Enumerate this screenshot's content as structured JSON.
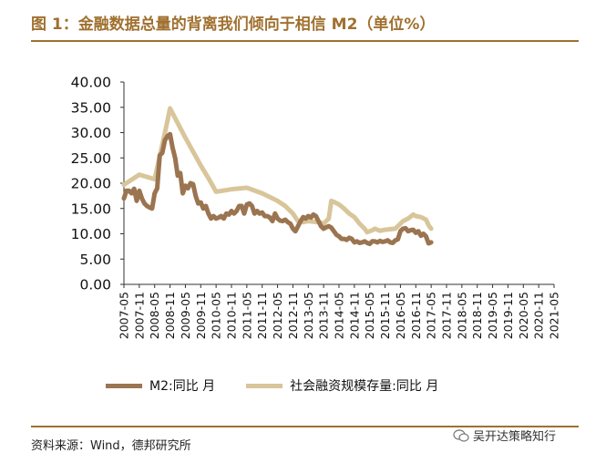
{
  "header": {
    "title": "图 1：金融数据总量的背离我们倾向于相信 M2（单位%）"
  },
  "footer": {
    "source": "资料来源：Wind，德邦研究所",
    "watermark": "吴开达策略知行"
  },
  "colors": {
    "accent": "#a0702f",
    "m2": "#9b7450",
    "tsf": "#d8c59a"
  },
  "chart_data": {
    "type": "line",
    "title": "金融数据总量的背离我们倾向于相信 M2（单位%）",
    "xlabel": "",
    "ylabel": "",
    "ylim": [
      0,
      40
    ],
    "yticks": [
      "0.00",
      "5.00",
      "10.00",
      "15.00",
      "20.00",
      "25.00",
      "30.00",
      "35.00",
      "40.00"
    ],
    "xticks": [
      "2007-05",
      "2007-11",
      "2008-05",
      "2008-11",
      "2009-05",
      "2009-11",
      "2010-05",
      "2010-11",
      "2011-05",
      "2011-11",
      "2012-05",
      "2012-11",
      "2013-05",
      "2013-11",
      "2014-05",
      "2014-11",
      "2015-05",
      "2015-11",
      "2016-05",
      "2016-11",
      "2017-05",
      "2017-11",
      "2018-05",
      "2018-11",
      "2019-05",
      "2019-11",
      "2020-05",
      "2020-11",
      "2021-05"
    ],
    "legend": "bottom",
    "series": [
      {
        "name": "M2:同比 月",
        "points": [
          [
            0,
            17.0
          ],
          [
            1,
            18.5
          ],
          [
            2,
            18.5
          ],
          [
            3,
            18.0
          ],
          [
            4,
            18.9
          ],
          [
            5,
            16.5
          ],
          [
            6,
            18.5
          ],
          [
            7,
            17.0
          ],
          [
            8,
            16.0
          ],
          [
            9,
            15.5
          ],
          [
            10,
            15.2
          ],
          [
            11,
            15.0
          ],
          [
            12,
            18.0
          ],
          [
            13,
            19.0
          ],
          [
            14,
            25.5
          ],
          [
            15,
            26.0
          ],
          [
            16,
            28.5
          ],
          [
            17,
            29.3
          ],
          [
            18,
            29.7
          ],
          [
            19,
            27.0
          ],
          [
            20,
            25.0
          ],
          [
            21,
            21.5
          ],
          [
            22,
            22.0
          ],
          [
            23,
            18.0
          ],
          [
            24,
            19.5
          ],
          [
            25,
            19.0
          ],
          [
            26,
            20.0
          ],
          [
            27,
            19.8
          ],
          [
            28,
            17.5
          ],
          [
            29,
            16.0
          ],
          [
            30,
            16.2
          ],
          [
            31,
            15.0
          ],
          [
            32,
            15.5
          ],
          [
            33,
            14.0
          ],
          [
            34,
            13.0
          ],
          [
            35,
            13.5
          ],
          [
            36,
            13.0
          ],
          [
            37,
            13.2
          ],
          [
            38,
            13.5
          ],
          [
            39,
            13.0
          ],
          [
            40,
            14.0
          ],
          [
            41,
            13.8
          ],
          [
            42,
            14.5
          ],
          [
            43,
            14.0
          ],
          [
            44,
            14.5
          ],
          [
            45,
            15.5
          ],
          [
            46,
            15.5
          ],
          [
            47,
            14.0
          ],
          [
            48,
            15.8
          ],
          [
            49,
            16.0
          ],
          [
            50,
            15.5
          ],
          [
            51,
            14.0
          ],
          [
            52,
            14.5
          ],
          [
            53,
            14.0
          ],
          [
            54,
            14.2
          ],
          [
            55,
            13.5
          ],
          [
            56,
            13.5
          ],
          [
            57,
            13.2
          ],
          [
            58,
            12.5
          ],
          [
            59,
            14.0
          ],
          [
            60,
            13.0
          ],
          [
            61,
            12.6
          ],
          [
            62,
            12.5
          ],
          [
            63,
            12.8
          ],
          [
            64,
            12.3
          ],
          [
            65,
            12.0
          ],
          [
            66,
            11.0
          ],
          [
            67,
            10.5
          ],
          [
            68,
            11.5
          ],
          [
            69,
            12.5
          ],
          [
            70,
            13.3
          ],
          [
            71,
            13.0
          ],
          [
            72,
            13.5
          ],
          [
            73,
            13.2
          ],
          [
            74,
            13.8
          ],
          [
            75,
            13.5
          ],
          [
            76,
            12.5
          ],
          [
            77,
            11.5
          ],
          [
            78,
            11.0
          ],
          [
            79,
            11.3
          ],
          [
            80,
            11.5
          ],
          [
            81,
            11.2
          ],
          [
            82,
            10.5
          ],
          [
            83,
            9.8
          ],
          [
            84,
            9.5
          ],
          [
            85,
            9.0
          ],
          [
            86,
            9.0
          ],
          [
            87,
            8.8
          ],
          [
            88,
            9.2
          ],
          [
            89,
            9.0
          ],
          [
            90,
            8.3
          ],
          [
            91,
            8.5
          ],
          [
            92,
            8.2
          ],
          [
            93,
            8.3
          ],
          [
            94,
            8.5
          ],
          [
            95,
            8.2
          ],
          [
            96,
            8.0
          ],
          [
            97,
            8.5
          ],
          [
            98,
            8.5
          ],
          [
            99,
            8.3
          ],
          [
            100,
            8.6
          ],
          [
            101,
            8.4
          ],
          [
            102,
            8.5
          ],
          [
            103,
            8.7
          ],
          [
            104,
            8.3
          ],
          [
            105,
            8.2
          ],
          [
            106,
            8.7
          ],
          [
            107,
            8.9
          ],
          [
            108,
            10.5
          ],
          [
            109,
            11.0
          ],
          [
            110,
            11.1
          ],
          [
            111,
            10.5
          ],
          [
            112,
            10.7
          ],
          [
            113,
            10.8
          ],
          [
            114,
            10.2
          ],
          [
            115,
            10.5
          ],
          [
            116,
            9.6
          ],
          [
            117,
            10.0
          ],
          [
            118,
            9.5
          ],
          [
            119,
            8.1
          ],
          [
            120,
            8.3
          ]
        ]
      },
      {
        "name": "社会融资规模存量:同比 月",
        "points": [
          [
            0,
            19.7
          ],
          [
            6,
            21.7
          ],
          [
            12,
            20.8
          ],
          [
            16,
            30.0
          ],
          [
            18,
            34.8
          ],
          [
            24,
            29.0
          ],
          [
            30,
            23.5
          ],
          [
            33,
            21.0
          ],
          [
            36,
            18.3
          ],
          [
            42,
            18.8
          ],
          [
            48,
            19.1
          ],
          [
            54,
            18.0
          ],
          [
            60,
            16.5
          ],
          [
            63,
            15.5
          ],
          [
            66,
            14.0
          ],
          [
            68,
            12.5
          ],
          [
            70,
            12.3
          ],
          [
            72,
            12.5
          ],
          [
            76,
            12.3
          ],
          [
            78,
            12.0
          ],
          [
            80,
            13.0
          ],
          [
            81,
            16.5
          ],
          [
            82,
            16.3
          ],
          [
            84,
            15.8
          ],
          [
            86,
            15.0
          ],
          [
            88,
            14.0
          ],
          [
            90,
            13.3
          ],
          [
            92,
            12.0
          ],
          [
            94,
            11.0
          ],
          [
            95,
            10.3
          ],
          [
            96,
            10.5
          ],
          [
            97,
            10.7
          ],
          [
            98,
            11.0
          ],
          [
            100,
            10.6
          ],
          [
            102,
            10.8
          ],
          [
            104,
            10.9
          ],
          [
            106,
            11.0
          ],
          [
            108,
            12.0
          ],
          [
            109,
            12.5
          ],
          [
            111,
            13.0
          ],
          [
            113,
            13.8
          ],
          [
            114,
            13.5
          ],
          [
            116,
            13.3
          ],
          [
            118,
            12.8
          ],
          [
            119,
            11.7
          ],
          [
            120,
            11.0
          ]
        ]
      }
    ]
  }
}
